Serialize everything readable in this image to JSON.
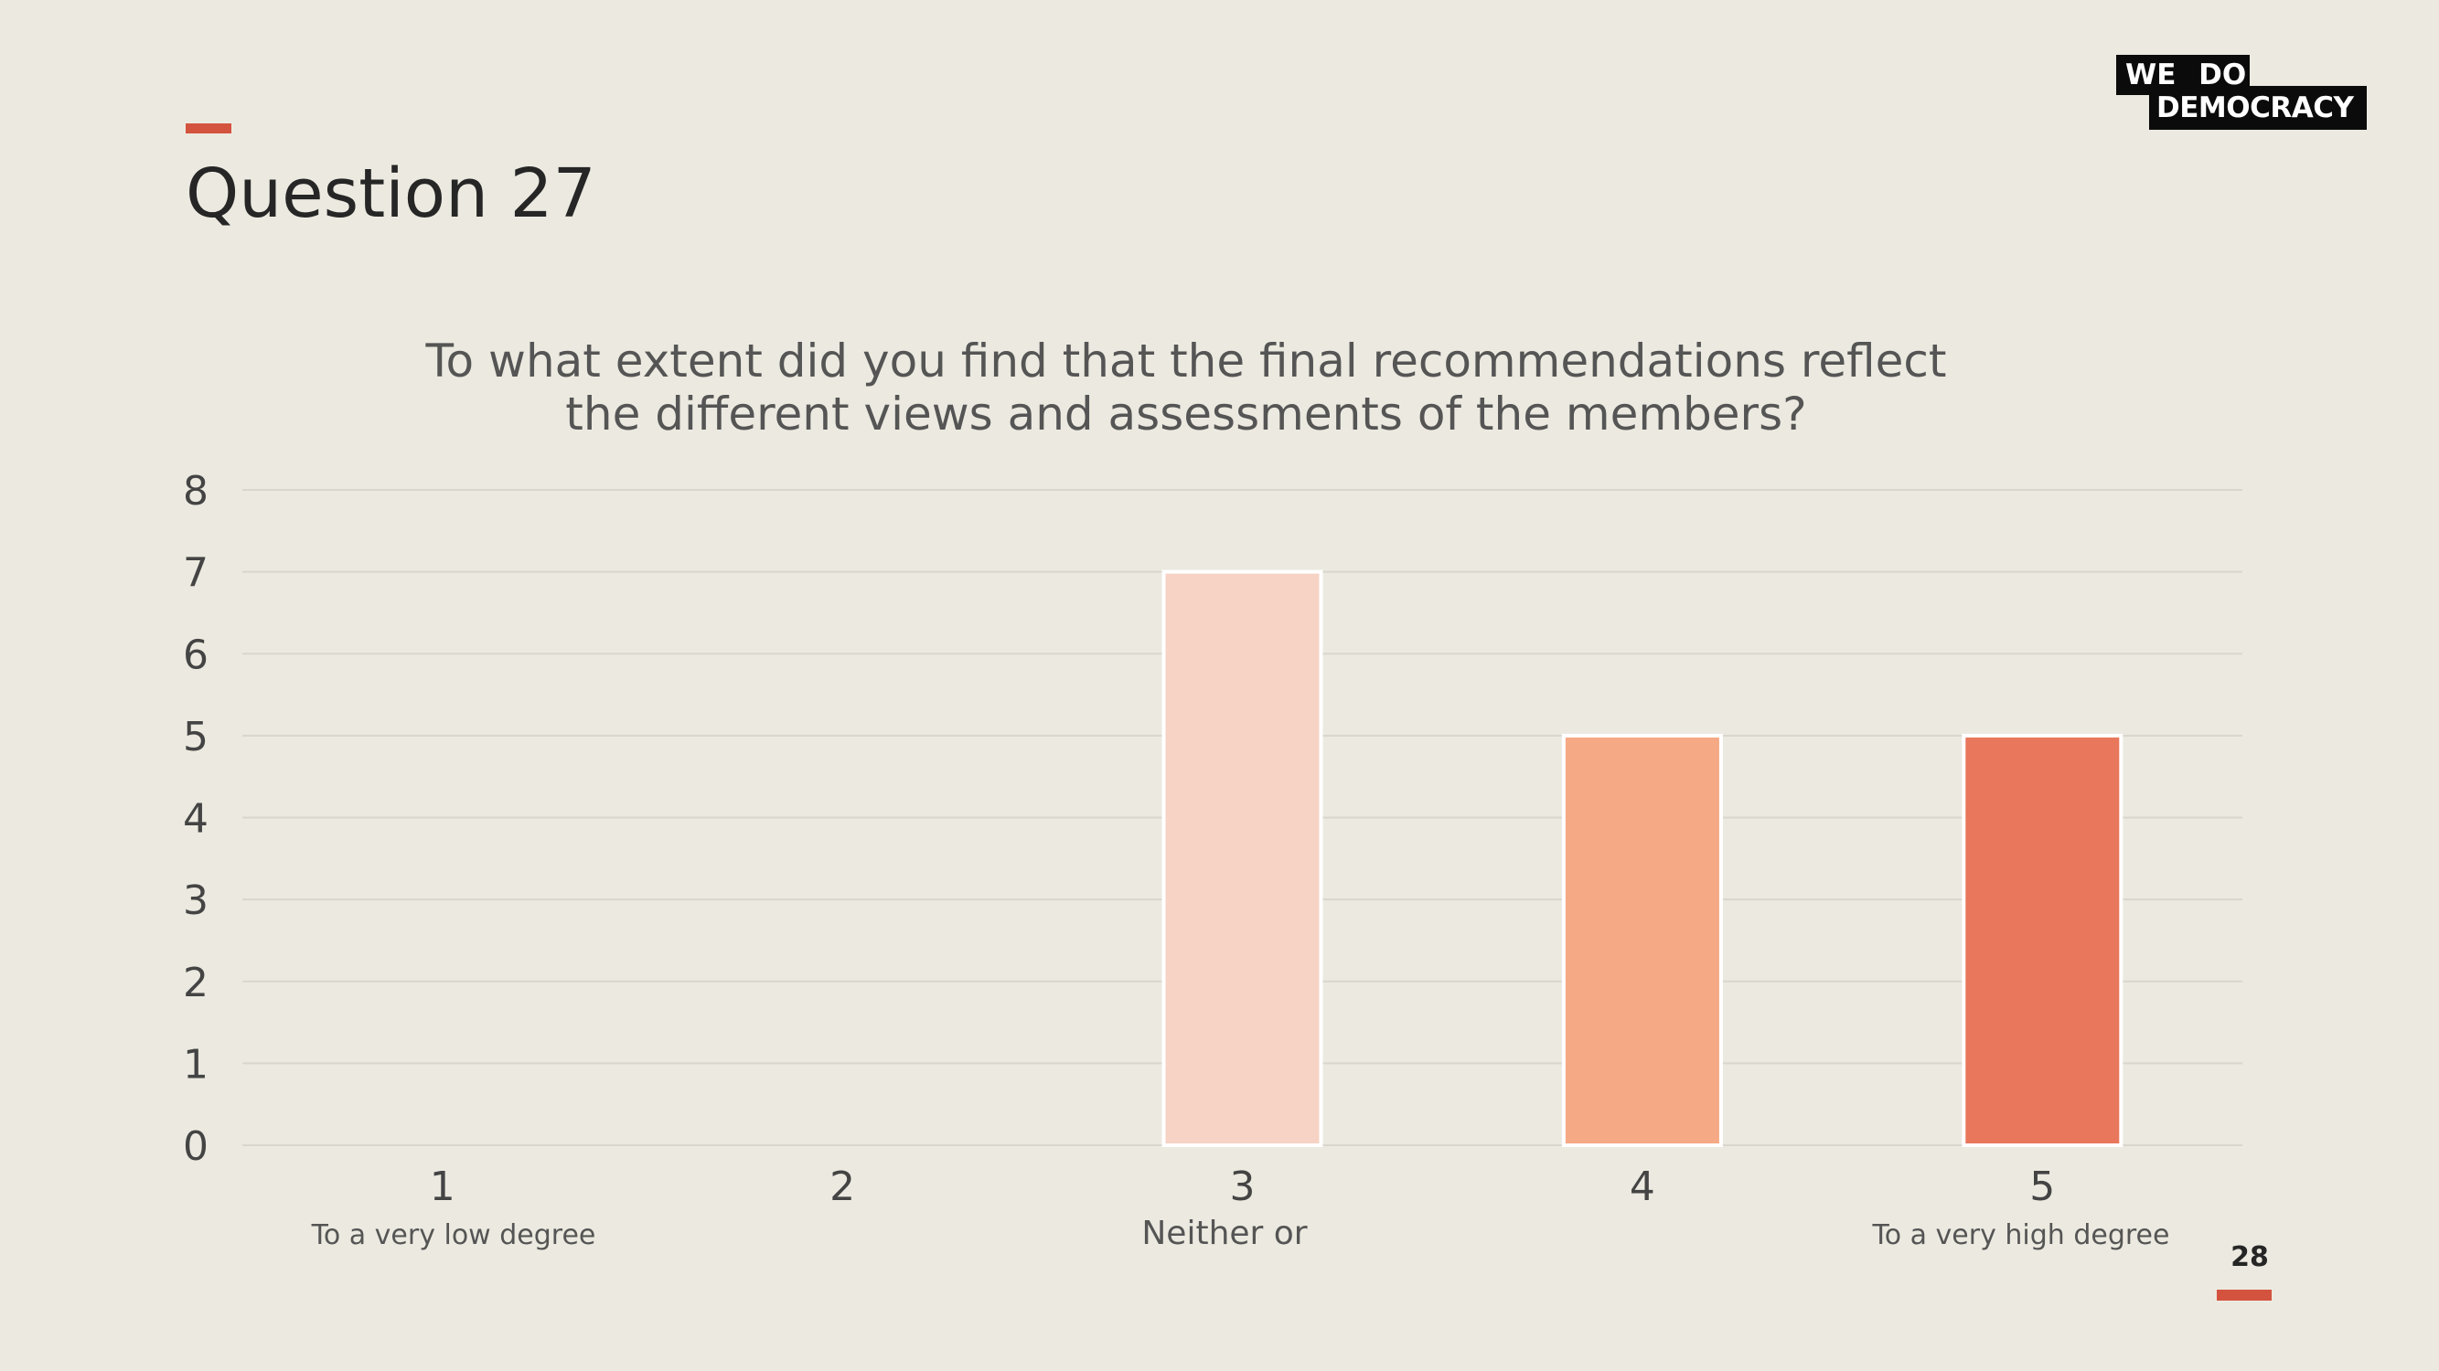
{
  "slide": {
    "title": "Question 27",
    "page_number": "28",
    "accent_color": "#D4533F",
    "background_color": "#ECEAE0"
  },
  "logo": {
    "line1": "WE DO",
    "line2": "DEMOCRACY"
  },
  "chart_data": {
    "type": "bar",
    "title_lines": [
      "To what extent did you find that the final recommendations reflect",
      "the different views and assessments of the members?"
    ],
    "categories": [
      "1",
      "2",
      "3",
      "4",
      "5"
    ],
    "category_sublabels": [
      "To a very low degree",
      "",
      "Neither or",
      "",
      "To a very high degree"
    ],
    "values": [
      0,
      0,
      7,
      5,
      5
    ],
    "bar_colors": [
      "#F7D4C5",
      "#F7D4C5",
      "#F6D3C4",
      "#F6A985",
      "#E8775C"
    ],
    "ylim": [
      0,
      8
    ],
    "yticks": [
      "0",
      "1",
      "2",
      "3",
      "4",
      "5",
      "6",
      "7",
      "8"
    ],
    "grid": true,
    "legend": "none"
  }
}
